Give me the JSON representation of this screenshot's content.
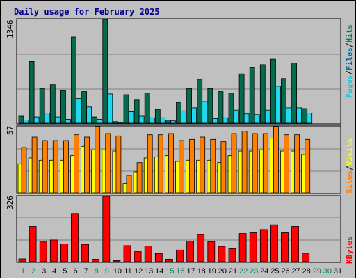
{
  "title": "Daily usage for February 2025",
  "colors": {
    "pages": "#066a4e",
    "files": "#00e0ff",
    "hits": "#00805c",
    "visits": "#ffff00",
    "sites": "#ff8000",
    "kbytes": "#ff0000",
    "weekend_day": "#00805c",
    "weekday": "#000000"
  },
  "labels": {
    "panel1_max": "1346",
    "panel2_max": "57",
    "panel3_max": "326",
    "panel1_side": [
      "Pages",
      "/",
      "Files",
      "/",
      "Hits"
    ],
    "panel2_side": [
      "Sites",
      "/",
      "Visits"
    ],
    "panel3_side": "KBytes"
  },
  "chart_data": {
    "type": "bar",
    "title": "Daily usage for February 2025",
    "categories": [
      "1",
      "2",
      "3",
      "4",
      "5",
      "6",
      "7",
      "8",
      "9",
      "10",
      "11",
      "12",
      "13",
      "14",
      "15",
      "16",
      "17",
      "18",
      "19",
      "20",
      "21",
      "22",
      "23",
      "24",
      "25",
      "26",
      "27",
      "28",
      "29",
      "30",
      "31"
    ],
    "weekend_days": [
      1,
      2,
      8,
      9,
      15,
      16,
      22,
      23,
      29,
      30
    ],
    "panels": [
      {
        "name": "Hits/Files/Pages",
        "max_label": 1346,
        "series": [
          {
            "name": "Hits",
            "values": [
              90,
              800,
              450,
              500,
              420,
              1120,
              410,
              80,
              1346,
              20,
              370,
              300,
              390,
              180,
              40,
              270,
              450,
              570,
              450,
              410,
              390,
              640,
              720,
              760,
              830,
              580,
              780,
              190,
              null,
              null,
              null
            ]
          },
          {
            "name": "Files",
            "values": [
              40,
              80,
              130,
              80,
              50,
              320,
              210,
              50,
              380,
              10,
              150,
              90,
              70,
              70,
              30,
              160,
              200,
              280,
              60,
              70,
              170,
              120,
              110,
              170,
              480,
              200,
              200,
              130,
              null,
              null,
              null
            ]
          },
          {
            "name": "Pages",
            "values": [
              20,
              30,
              40,
              30,
              20,
              60,
              40,
              20,
              80,
              5,
              30,
              20,
              20,
              20,
              10,
              30,
              30,
              40,
              30,
              30,
              30,
              30,
              30,
              30,
              60,
              40,
              40,
              30,
              null,
              null,
              null
            ]
          }
        ]
      },
      {
        "name": "Sites/Visits",
        "max_label": 57,
        "series": [
          {
            "name": "Sites",
            "values": [
              39,
              48,
              45,
              45,
              45,
              50,
              48,
              57,
              51,
              49,
              15,
              26,
              50,
              50,
              51,
              45,
              46,
              48,
              46,
              44,
              51,
              53,
              51,
              51,
              57,
              50,
              50,
              46,
              null,
              null,
              null
            ]
          },
          {
            "name": "Visits",
            "values": [
              25,
              30,
              28,
              28,
              28,
              32,
              40,
              37,
              37,
              36,
              8,
              18,
              30,
              31,
              32,
              27,
              28,
              28,
              28,
              26,
              32,
              36,
              36,
              37,
              47,
              36,
              36,
              33,
              null,
              null,
              null
            ]
          }
        ]
      },
      {
        "name": "KBytes",
        "max_label": 326,
        "series": [
          {
            "name": "KBytes",
            "values": [
              14,
              175,
              98,
              108,
              88,
              240,
              86,
              12,
              326,
              6,
              80,
              50,
              78,
              41,
              12,
              58,
              102,
              135,
              100,
              76,
              64,
              140,
              144,
              160,
              183,
              144,
              175,
              42,
              null,
              null,
              null
            ]
          }
        ]
      }
    ]
  }
}
